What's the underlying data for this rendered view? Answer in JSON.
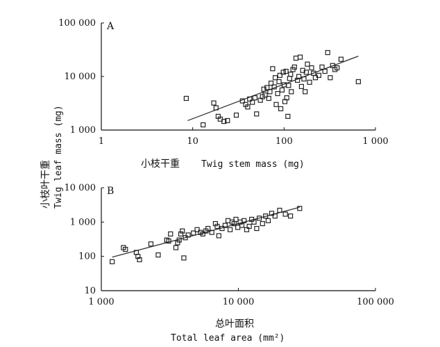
{
  "chart_data": [
    {
      "type": "scatter",
      "panel_label": "A",
      "xscale": "log",
      "yscale": "log",
      "xlim": [
        1,
        1000
      ],
      "ylim": [
        1000,
        100000
      ],
      "xticks": [
        1,
        10,
        100,
        1000
      ],
      "xtick_labels": [
        "1",
        "10",
        "100",
        "1 000"
      ],
      "yticks": [
        1000,
        10000,
        100000
      ],
      "ytick_labels": [
        "1 000",
        "10 000",
        "100 000"
      ],
      "xlabel_cn": "小枝干重",
      "xlabel_en": "Twig stem mass (mg)",
      "fit_line": [
        [
          8.8,
          1500
        ],
        [
          650,
          24000
        ]
      ],
      "points": [
        [
          8.5,
          3900
        ],
        [
          13,
          1250
        ],
        [
          17,
          3200
        ],
        [
          18,
          2600
        ],
        [
          19,
          1800
        ],
        [
          20,
          1600
        ],
        [
          22,
          1450
        ],
        [
          24,
          1500
        ],
        [
          30,
          1900
        ],
        [
          35,
          3500
        ],
        [
          38,
          3000
        ],
        [
          40,
          2700
        ],
        [
          42,
          3800
        ],
        [
          45,
          3300
        ],
        [
          48,
          4000
        ],
        [
          50,
          2000
        ],
        [
          55,
          3600
        ],
        [
          58,
          4200
        ],
        [
          60,
          5800
        ],
        [
          62,
          4500
        ],
        [
          65,
          6200
        ],
        [
          68,
          3900
        ],
        [
          70,
          5200
        ],
        [
          72,
          7500
        ],
        [
          75,
          14000
        ],
        [
          78,
          6400
        ],
        [
          80,
          9500
        ],
        [
          82,
          3000
        ],
        [
          85,
          4800
        ],
        [
          88,
          8000
        ],
        [
          90,
          10500
        ],
        [
          92,
          2500
        ],
        [
          95,
          5600
        ],
        [
          98,
          12000
        ],
        [
          100,
          7000
        ],
        [
          102,
          3400
        ],
        [
          105,
          12500
        ],
        [
          107,
          4000
        ],
        [
          110,
          1800
        ],
        [
          112,
          6800
        ],
        [
          115,
          9200
        ],
        [
          118,
          11000
        ],
        [
          120,
          5200
        ],
        [
          125,
          13500
        ],
        [
          130,
          15000
        ],
        [
          135,
          22000
        ],
        [
          140,
          8500
        ],
        [
          145,
          10000
        ],
        [
          150,
          23000
        ],
        [
          155,
          6500
        ],
        [
          160,
          13000
        ],
        [
          165,
          9000
        ],
        [
          170,
          5200
        ],
        [
          175,
          12000
        ],
        [
          180,
          17000
        ],
        [
          190,
          7800
        ],
        [
          200,
          14500
        ],
        [
          210,
          11500
        ],
        [
          220,
          9500
        ],
        [
          240,
          10500
        ],
        [
          260,
          15000
        ],
        [
          280,
          12500
        ],
        [
          300,
          28000
        ],
        [
          320,
          9500
        ],
        [
          340,
          16000
        ],
        [
          360,
          13500
        ],
        [
          380,
          14500
        ],
        [
          420,
          21000
        ],
        [
          650,
          8000
        ]
      ]
    },
    {
      "type": "scatter",
      "panel_label": "B",
      "xscale": "log",
      "yscale": "log",
      "xlim": [
        1000,
        100000
      ],
      "ylim": [
        10,
        10000
      ],
      "xticks": [
        1000,
        10000,
        100000
      ],
      "xtick_labels": [
        "1 000",
        "10 000",
        "100 000"
      ],
      "yticks": [
        10,
        100,
        1000,
        10000
      ],
      "ytick_labels": [
        "10",
        "100",
        "1 000",
        "10 000"
      ],
      "xlabel_cn": "总叶面积",
      "xlabel_en": "Total leaf area (mm²)",
      "fit_line": [
        [
          1200,
          95
        ],
        [
          28000,
          2700
        ]
      ],
      "points": [
        [
          1200,
          70
        ],
        [
          1450,
          180
        ],
        [
          1500,
          160
        ],
        [
          1800,
          130
        ],
        [
          1850,
          100
        ],
        [
          1900,
          80
        ],
        [
          2300,
          230
        ],
        [
          2600,
          110
        ],
        [
          3000,
          300
        ],
        [
          3100,
          280
        ],
        [
          3200,
          450
        ],
        [
          3500,
          180
        ],
        [
          3600,
          250
        ],
        [
          3700,
          300
        ],
        [
          3800,
          450
        ],
        [
          3900,
          550
        ],
        [
          4000,
          90
        ],
        [
          4100,
          350
        ],
        [
          4300,
          420
        ],
        [
          4700,
          480
        ],
        [
          5000,
          600
        ],
        [
          5300,
          500
        ],
        [
          5500,
          450
        ],
        [
          5800,
          550
        ],
        [
          6000,
          650
        ],
        [
          6400,
          500
        ],
        [
          6800,
          900
        ],
        [
          7000,
          750
        ],
        [
          7200,
          400
        ],
        [
          7600,
          650
        ],
        [
          8000,
          800
        ],
        [
          8400,
          1100
        ],
        [
          8700,
          600
        ],
        [
          9000,
          1000
        ],
        [
          9300,
          900
        ],
        [
          9600,
          1200
        ],
        [
          9900,
          700
        ],
        [
          10300,
          1000
        ],
        [
          10600,
          800
        ],
        [
          11000,
          1100
        ],
        [
          11500,
          600
        ],
        [
          12000,
          750
        ],
        [
          12500,
          1200
        ],
        [
          13000,
          1000
        ],
        [
          13600,
          650
        ],
        [
          14200,
          1300
        ],
        [
          15000,
          900
        ],
        [
          15800,
          1500
        ],
        [
          16500,
          1100
        ],
        [
          17500,
          1800
        ],
        [
          18500,
          1500
        ],
        [
          20000,
          2200
        ],
        [
          22000,
          1700
        ],
        [
          24000,
          1500
        ],
        [
          28000,
          2500
        ]
      ]
    }
  ],
  "shared_ylabel_cn": "小枝叶干重",
  "shared_ylabel_en": "Twig leaf mass (mg)"
}
